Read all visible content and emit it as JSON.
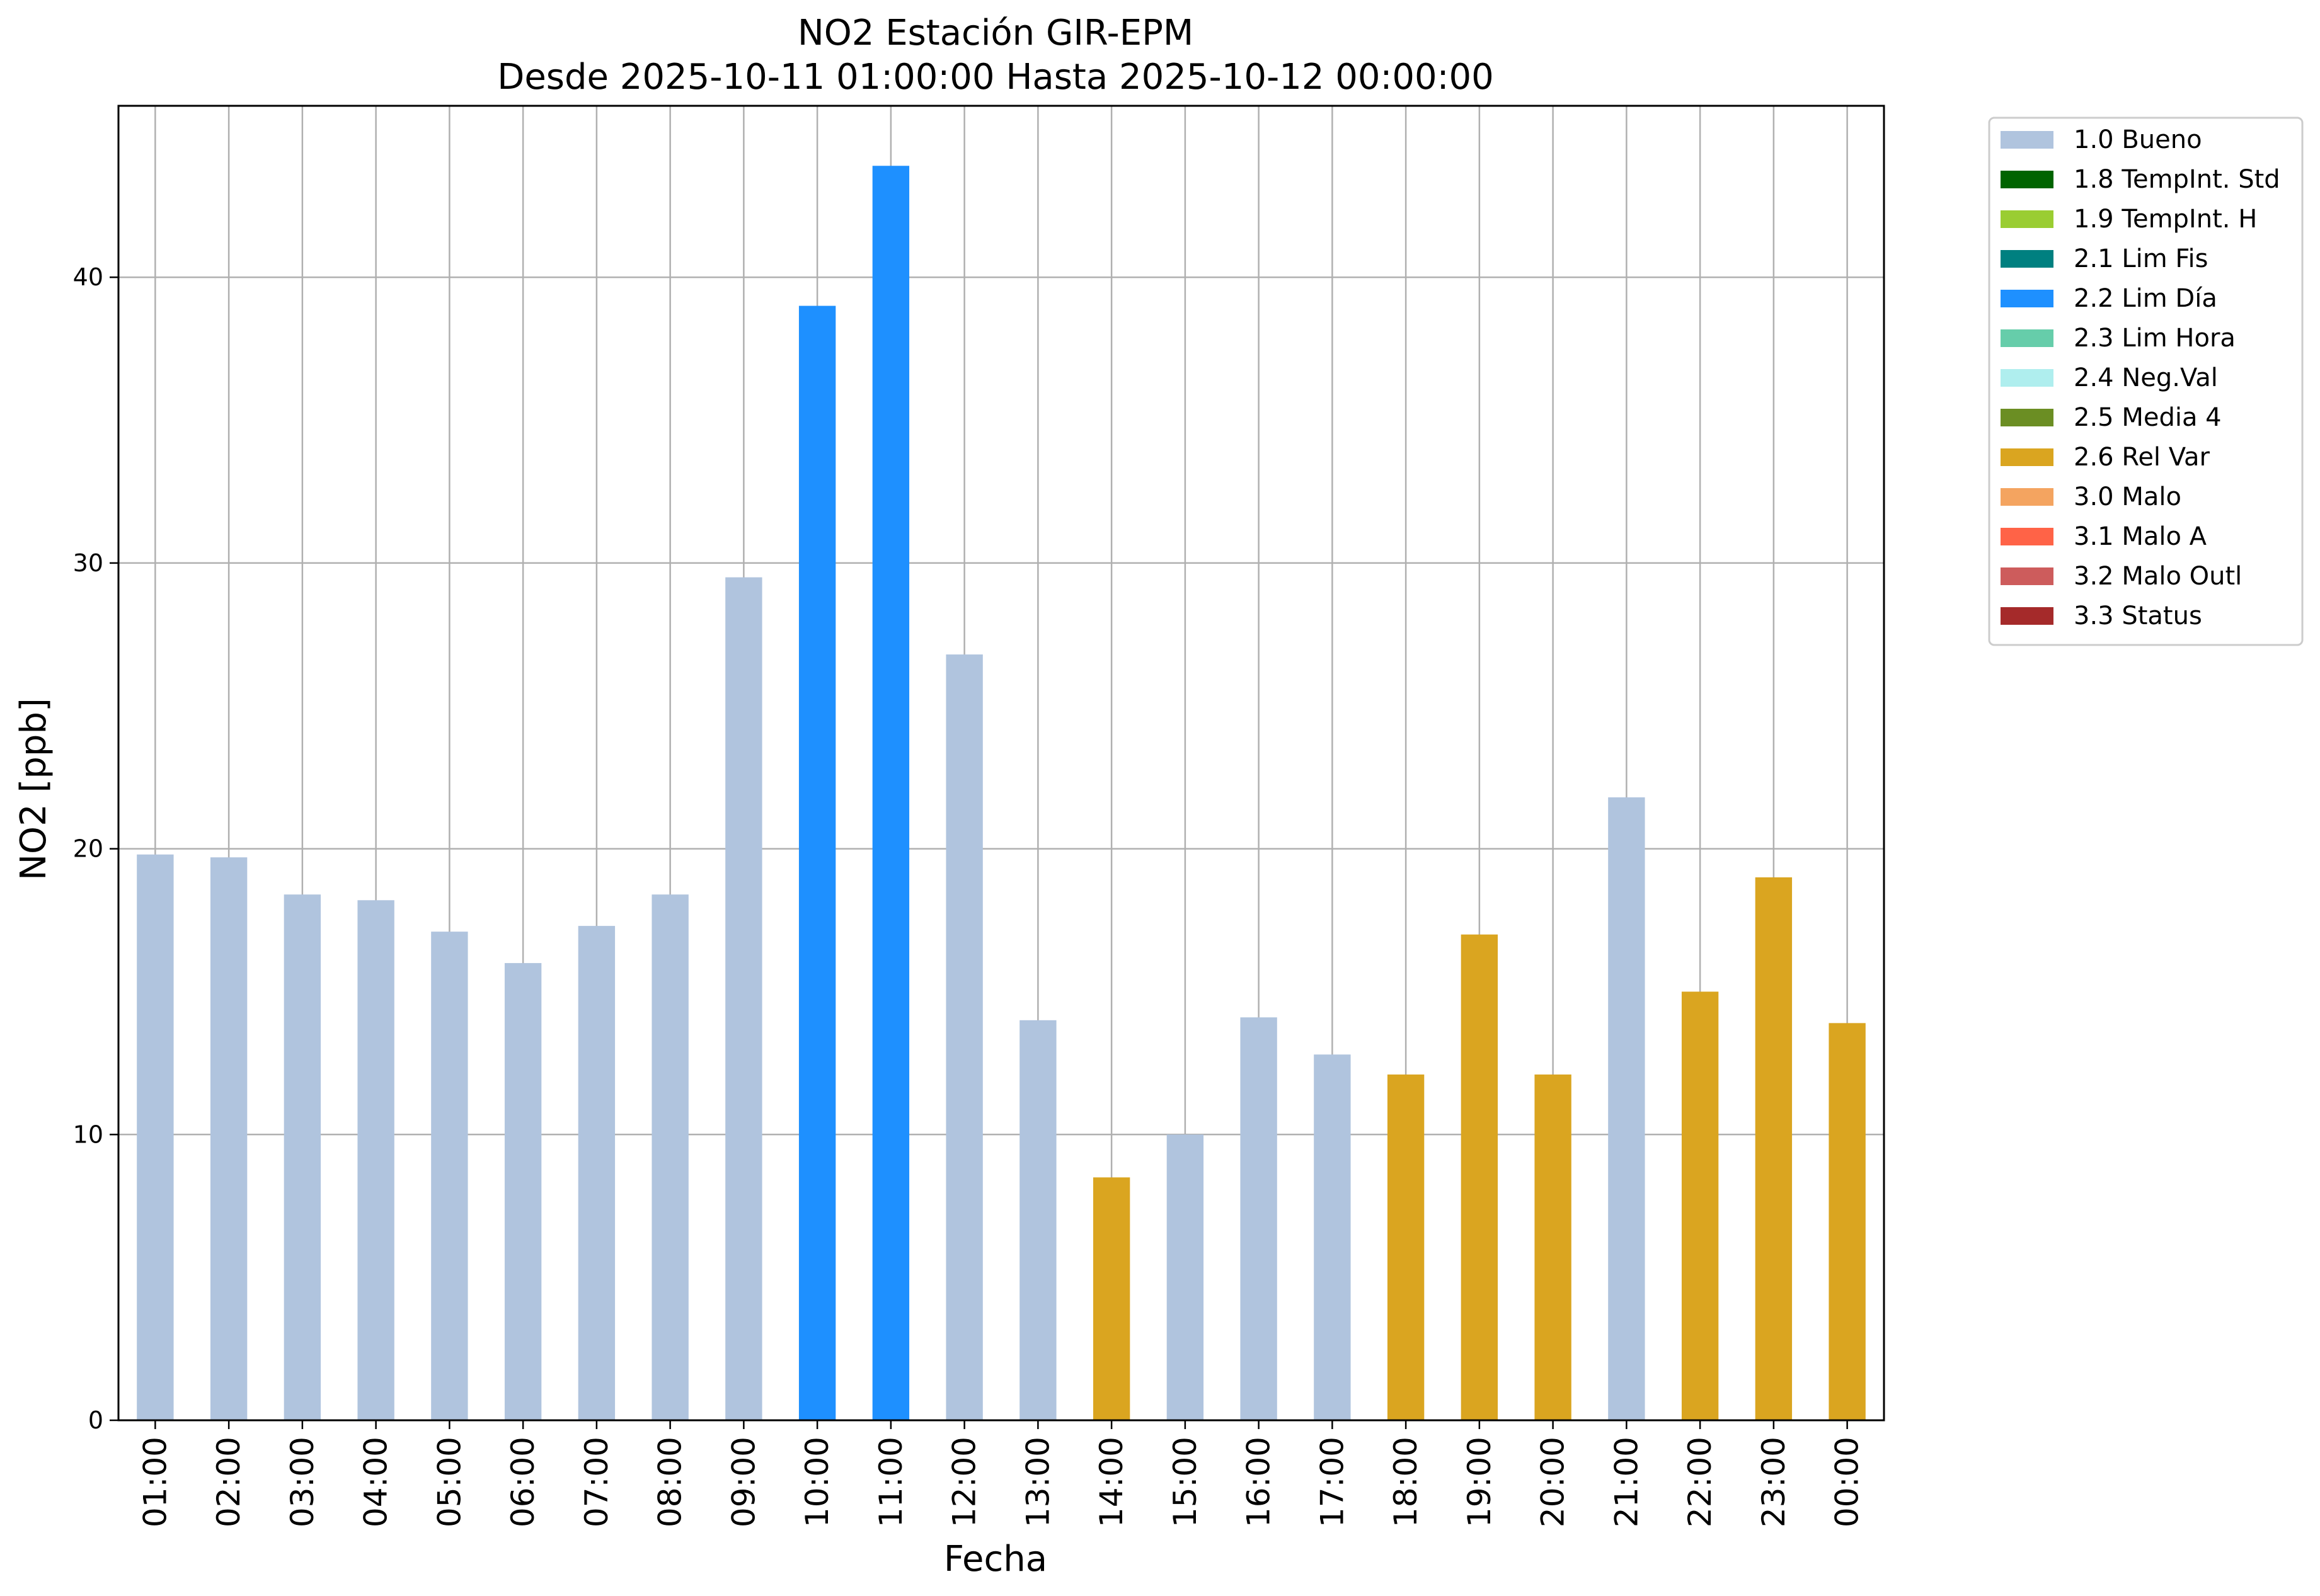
{
  "chart_data": {
    "type": "bar",
    "title": [
      "NO2 Estación GIR-EPM",
      "Desde 2025-10-11 01:00:00 Hasta 2025-10-12 00:00:00"
    ],
    "xlabel": "Fecha",
    "ylabel": "NO2 [ppb]",
    "ylim": [
      0,
      46
    ],
    "yticks": [
      0,
      10,
      20,
      30,
      40
    ],
    "grid": true,
    "legend_position": "outside-top-right",
    "categories": [
      "01:00",
      "02:00",
      "03:00",
      "04:00",
      "05:00",
      "06:00",
      "07:00",
      "08:00",
      "09:00",
      "10:00",
      "11:00",
      "12:00",
      "13:00",
      "14:00",
      "15:00",
      "16:00",
      "17:00",
      "18:00",
      "19:00",
      "20:00",
      "21:00",
      "22:00",
      "23:00",
      "00:00"
    ],
    "values": [
      19.8,
      19.7,
      18.4,
      18.2,
      17.1,
      16.0,
      17.3,
      18.4,
      29.5,
      39.0,
      43.9,
      26.8,
      14.0,
      8.5,
      10.0,
      14.1,
      12.8,
      12.1,
      17.0,
      12.1,
      21.8,
      15.0,
      19.0,
      13.9
    ],
    "flags": [
      "1.0 Bueno",
      "1.0 Bueno",
      "1.0 Bueno",
      "1.0 Bueno",
      "1.0 Bueno",
      "1.0 Bueno",
      "1.0 Bueno",
      "1.0 Bueno",
      "1.0 Bueno",
      "2.2 Lim Día",
      "2.2 Lim Día",
      "1.0 Bueno",
      "1.0 Bueno",
      "2.6 Rel Var",
      "1.0 Bueno",
      "1.0 Bueno",
      "1.0 Bueno",
      "2.6 Rel Var",
      "2.6 Rel Var",
      "2.6 Rel Var",
      "1.0 Bueno",
      "2.6 Rel Var",
      "2.6 Rel Var",
      "2.6 Rel Var"
    ],
    "legend": [
      {
        "label": "1.0 Bueno",
        "color": "#b0c4de"
      },
      {
        "label": "1.8 TempInt. Std",
        "color": "#006400"
      },
      {
        "label": "1.9 TempInt. H",
        "color": "#9acd32"
      },
      {
        "label": "2.1 Lim Fis",
        "color": "#008080"
      },
      {
        "label": "2.2 Lim Día",
        "color": "#1e90ff"
      },
      {
        "label": "2.3 Lim Hora",
        "color": "#66cdaa"
      },
      {
        "label": "2.4 Neg.Val",
        "color": "#afeeee"
      },
      {
        "label": "2.5 Media 4",
        "color": "#6b8e23"
      },
      {
        "label": "2.6 Rel Var",
        "color": "#daa520"
      },
      {
        "label": "3.0 Malo",
        "color": "#f4a460"
      },
      {
        "label": "3.1 Malo A",
        "color": "#ff6347"
      },
      {
        "label": "3.2 Malo Outl",
        "color": "#cd5c5c"
      },
      {
        "label": "3.3 Status",
        "color": "#a52a2a"
      }
    ]
  }
}
